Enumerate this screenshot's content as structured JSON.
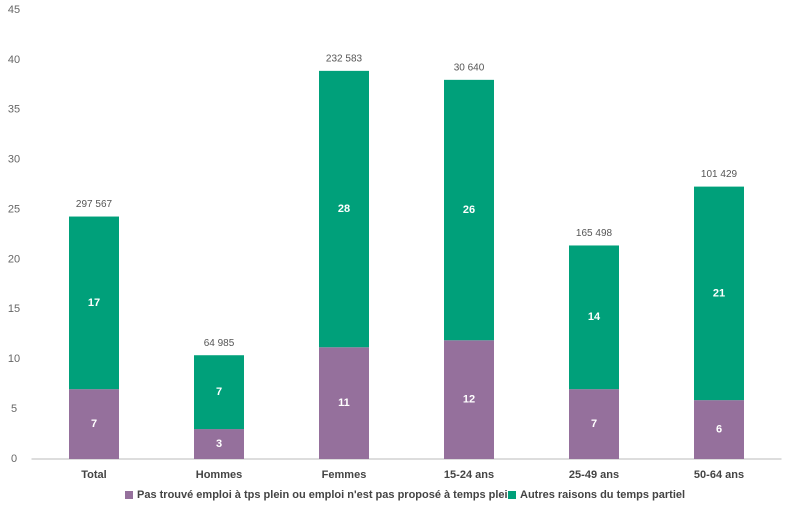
{
  "chart_data": {
    "type": "stacked_bar",
    "categories": [
      "Total",
      "Hommes",
      "Femmes",
      "15-24 ans",
      "25-49 ans",
      "50-64 ans"
    ],
    "series": [
      {
        "name": "Pas trouvé emploi à tps plein ou emploi n'est pas proposé à temps plein",
        "color": "#95709c",
        "values": [
          7.0,
          3.0,
          11.2,
          11.9,
          7.0,
          5.9
        ],
        "value_labels": [
          "7",
          "3",
          "11",
          "12",
          "7",
          "6"
        ]
      },
      {
        "name": "Autres raisons du temps partiel",
        "color": "#00a07a",
        "values": [
          17.3,
          7.4,
          27.7,
          26.1,
          14.4,
          21.4
        ],
        "value_labels": [
          "17",
          "7",
          "28",
          "26",
          "14",
          "21"
        ]
      }
    ],
    "bar_top_labels": [
      "297 567",
      "64 985",
      "232 583",
      "30 640",
      "165 498",
      "101 429"
    ],
    "ylim": [
      0,
      45
    ],
    "yticks": [
      0,
      5,
      10,
      15,
      20,
      25,
      30,
      35,
      40,
      45
    ],
    "grid": false,
    "legend": "bottom"
  }
}
